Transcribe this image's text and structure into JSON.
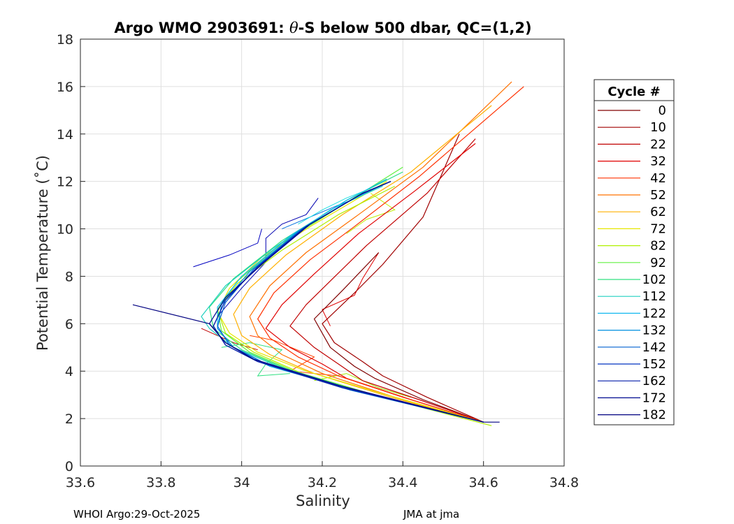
{
  "chart_data": {
    "type": "line",
    "title_prefix": "Argo WMO 2903691: ",
    "title_theta": "θ",
    "title_suffix": "-S below 500 dbar,  QC=(1,2)",
    "xlabel": "Salinity",
    "ylabel": "Potential Temperature (˚C)",
    "xlim": [
      33.6,
      34.8
    ],
    "ylim": [
      0,
      18
    ],
    "xticks": [
      33.6,
      33.8,
      34.0,
      34.2,
      34.4,
      34.6,
      34.8
    ],
    "xtick_labels": [
      "33.6",
      "33.8",
      "34",
      "34.2",
      "34.4",
      "34.6",
      "34.8"
    ],
    "yticks": [
      0,
      2,
      4,
      6,
      8,
      10,
      12,
      14,
      16,
      18
    ],
    "ytick_labels": [
      "0",
      "2",
      "4",
      "6",
      "8",
      "10",
      "12",
      "14",
      "16",
      "18"
    ],
    "grid": true,
    "legend_title": "Cycle #",
    "legend_placement": "outside-right",
    "series": [
      {
        "name": "0",
        "color": "#800000",
        "points": [
          [
            34.6,
            1.85
          ],
          [
            34.45,
            2.8
          ],
          [
            34.33,
            3.7
          ],
          [
            34.28,
            4.2
          ],
          [
            34.22,
            5.0
          ],
          [
            34.18,
            6.2
          ],
          [
            34.25,
            7.4
          ],
          [
            34.34,
            9.0
          ]
        ]
      },
      {
        "name": "10",
        "color": "#a00000",
        "points": [
          [
            34.6,
            1.85
          ],
          [
            34.46,
            2.9
          ],
          [
            34.35,
            3.8
          ],
          [
            34.3,
            4.4
          ],
          [
            34.23,
            5.2
          ],
          [
            34.2,
            6.0
          ],
          [
            34.28,
            7.3
          ],
          [
            34.35,
            8.5
          ],
          [
            34.45,
            10.5
          ],
          [
            34.54,
            14.0
          ]
        ]
      },
      {
        "name": "22",
        "color": "#c00000",
        "points": [
          [
            34.6,
            1.85
          ],
          [
            34.44,
            2.8
          ],
          [
            34.3,
            3.6
          ],
          [
            34.24,
            4.3
          ],
          [
            34.18,
            5.0
          ],
          [
            34.12,
            5.9
          ],
          [
            34.16,
            6.8
          ],
          [
            34.22,
            7.8
          ],
          [
            34.31,
            9.3
          ],
          [
            34.46,
            11.5
          ],
          [
            34.58,
            13.8
          ]
        ]
      },
      {
        "name": "32",
        "color": "#e00000",
        "points": [
          [
            34.6,
            1.85
          ],
          [
            34.42,
            2.8
          ],
          [
            34.26,
            3.7
          ],
          [
            34.2,
            4.3
          ],
          [
            34.12,
            5.0
          ],
          [
            34.06,
            5.8
          ],
          [
            34.1,
            6.8
          ],
          [
            34.18,
            8.1
          ],
          [
            34.29,
            9.8
          ],
          [
            34.43,
            11.6
          ],
          [
            34.58,
            13.6
          ]
        ]
      },
      {
        "name": "42",
        "color": "#ff3000",
        "points": [
          [
            34.6,
            1.85
          ],
          [
            34.4,
            2.9
          ],
          [
            34.24,
            3.8
          ],
          [
            34.14,
            4.6
          ],
          [
            34.07,
            5.4
          ],
          [
            34.04,
            6.2
          ],
          [
            34.08,
            7.3
          ],
          [
            34.17,
            8.7
          ],
          [
            34.28,
            10.1
          ],
          [
            34.44,
            12.2
          ],
          [
            34.7,
            16.0
          ]
        ]
      },
      {
        "name": "52",
        "color": "#ff7000",
        "points": [
          [
            34.6,
            1.85
          ],
          [
            34.38,
            2.9
          ],
          [
            34.2,
            3.9
          ],
          [
            34.1,
            4.7
          ],
          [
            34.04,
            5.5
          ],
          [
            34.02,
            6.3
          ],
          [
            34.07,
            7.6
          ],
          [
            34.16,
            9.0
          ],
          [
            34.29,
            10.6
          ],
          [
            34.45,
            12.6
          ],
          [
            34.67,
            16.2
          ]
        ]
      },
      {
        "name": "62",
        "color": "#ffb000",
        "points": [
          [
            34.6,
            1.85
          ],
          [
            34.37,
            2.9
          ],
          [
            34.18,
            3.9
          ],
          [
            34.07,
            4.7
          ],
          [
            34.0,
            5.5
          ],
          [
            33.98,
            6.4
          ],
          [
            34.02,
            7.5
          ],
          [
            34.11,
            8.9
          ],
          [
            34.25,
            10.6
          ],
          [
            34.42,
            12.4
          ],
          [
            34.62,
            15.2
          ]
        ]
      },
      {
        "name": "72",
        "color": "#e6e600",
        "points": [
          [
            34.6,
            1.85
          ],
          [
            34.36,
            3.0
          ],
          [
            34.16,
            4.0
          ],
          [
            34.04,
            4.8
          ],
          [
            33.97,
            5.6
          ],
          [
            33.94,
            6.5
          ],
          [
            33.97,
            7.5
          ],
          [
            34.05,
            8.8
          ],
          [
            34.18,
            10.2
          ],
          [
            34.36,
            12.0
          ]
        ]
      },
      {
        "name": "82",
        "color": "#b0f000",
        "points": [
          [
            34.62,
            1.7
          ],
          [
            34.35,
            2.9
          ],
          [
            34.15,
            3.9
          ],
          [
            34.03,
            4.8
          ],
          [
            33.96,
            5.6
          ],
          [
            33.94,
            6.6
          ],
          [
            33.99,
            7.7
          ],
          [
            34.1,
            9.1
          ],
          [
            34.24,
            10.6
          ],
          [
            34.38,
            11.8
          ]
        ]
      },
      {
        "name": "92",
        "color": "#60f040",
        "points": [
          [
            34.6,
            1.85
          ],
          [
            34.33,
            3.0
          ],
          [
            34.13,
            4.0
          ],
          [
            34.02,
            4.8
          ],
          [
            33.95,
            5.7
          ],
          [
            33.94,
            6.6
          ],
          [
            33.99,
            7.8
          ],
          [
            34.1,
            9.4
          ],
          [
            34.25,
            11.0
          ],
          [
            34.4,
            12.6
          ]
        ]
      },
      {
        "name": "102",
        "color": "#30e080",
        "points": [
          [
            34.6,
            1.85
          ],
          [
            34.32,
            3.0
          ],
          [
            34.11,
            4.1
          ],
          [
            34.0,
            4.9
          ],
          [
            33.93,
            5.8
          ],
          [
            33.92,
            6.7
          ],
          [
            33.98,
            7.9
          ],
          [
            34.1,
            9.5
          ],
          [
            34.26,
            11.2
          ],
          [
            34.4,
            12.4
          ]
        ]
      },
      {
        "name": "112",
        "color": "#20d0c0",
        "points": [
          [
            34.6,
            1.85
          ],
          [
            34.3,
            3.1
          ],
          [
            34.09,
            4.2
          ],
          [
            33.98,
            5.0
          ],
          [
            33.92,
            5.8
          ],
          [
            33.9,
            6.3
          ],
          [
            33.96,
            7.6
          ],
          [
            34.08,
            9.2
          ],
          [
            34.22,
            10.8
          ],
          [
            34.35,
            11.8
          ]
        ]
      },
      {
        "name": "122",
        "color": "#10b8f0",
        "points": [
          [
            34.6,
            1.85
          ],
          [
            34.28,
            3.2
          ],
          [
            34.07,
            4.2
          ],
          [
            33.98,
            5.0
          ],
          [
            33.94,
            5.8
          ],
          [
            33.94,
            6.7
          ],
          [
            34.0,
            8.0
          ],
          [
            34.12,
            9.7
          ],
          [
            34.26,
            11.2
          ],
          [
            34.36,
            12.1
          ]
        ]
      },
      {
        "name": "132",
        "color": "#0090e0",
        "points": [
          [
            34.6,
            1.85
          ],
          [
            34.27,
            3.2
          ],
          [
            34.06,
            4.3
          ],
          [
            33.98,
            5.0
          ],
          [
            33.94,
            5.8
          ],
          [
            33.95,
            6.8
          ],
          [
            34.02,
            8.2
          ],
          [
            34.14,
            9.9
          ],
          [
            34.28,
            11.3
          ],
          [
            34.37,
            12.0
          ]
        ]
      },
      {
        "name": "142",
        "color": "#0060d0",
        "points": [
          [
            34.6,
            1.85
          ],
          [
            34.26,
            3.3
          ],
          [
            34.05,
            4.4
          ],
          [
            33.97,
            5.1
          ],
          [
            33.94,
            5.9
          ],
          [
            33.96,
            6.9
          ],
          [
            34.03,
            8.3
          ],
          [
            34.15,
            10.0
          ],
          [
            34.29,
            11.4
          ],
          [
            34.37,
            12.0
          ]
        ]
      },
      {
        "name": "152",
        "color": "#0030c0",
        "points": [
          [
            34.6,
            1.85
          ],
          [
            34.25,
            3.3
          ],
          [
            34.04,
            4.4
          ],
          [
            33.96,
            5.1
          ],
          [
            33.93,
            5.9
          ],
          [
            33.96,
            7.0
          ],
          [
            34.04,
            8.4
          ],
          [
            34.16,
            10.1
          ],
          [
            34.3,
            11.5
          ],
          [
            34.37,
            12.0
          ]
        ]
      },
      {
        "name": "162",
        "color": "#001aa8",
        "points": [
          [
            34.6,
            1.85
          ],
          [
            34.25,
            3.3
          ],
          [
            34.04,
            4.4
          ],
          [
            33.96,
            5.1
          ],
          [
            33.93,
            5.9
          ],
          [
            33.96,
            7.0
          ],
          [
            34.04,
            8.4
          ],
          [
            34.16,
            10.1
          ],
          [
            34.3,
            11.5
          ],
          [
            34.37,
            12.0
          ]
        ]
      },
      {
        "name": "172",
        "color": "#000a90",
        "points": [
          [
            34.6,
            1.85
          ],
          [
            34.24,
            3.4
          ],
          [
            34.03,
            4.5
          ],
          [
            33.96,
            5.2
          ],
          [
            33.92,
            6.0
          ],
          [
            33.96,
            7.1
          ],
          [
            34.05,
            8.5
          ],
          [
            34.17,
            10.2
          ],
          [
            34.3,
            11.5
          ],
          [
            34.37,
            12.0
          ]
        ]
      },
      {
        "name": "182",
        "color": "#000080",
        "points": [
          [
            34.64,
            1.85
          ],
          [
            34.6,
            1.85
          ],
          [
            34.24,
            3.4
          ],
          [
            34.03,
            4.5
          ],
          [
            33.96,
            5.2
          ],
          [
            33.92,
            6.0
          ],
          [
            33.73,
            6.8
          ]
        ]
      }
    ],
    "extra_traces": [
      {
        "color": "#0000b0",
        "points": [
          [
            33.94,
            6.3
          ],
          [
            34.0,
            7.5
          ],
          [
            34.06,
            8.6
          ],
          [
            34.06,
            9.6
          ],
          [
            34.1,
            10.2
          ],
          [
            34.16,
            10.6
          ],
          [
            34.19,
            11.3
          ]
        ]
      },
      {
        "color": "#0000c0",
        "points": [
          [
            33.88,
            8.4
          ],
          [
            33.97,
            8.9
          ],
          [
            34.04,
            9.4
          ],
          [
            34.05,
            10.0
          ]
        ]
      },
      {
        "color": "#0070e0",
        "points": [
          [
            34.1,
            10.0
          ],
          [
            34.17,
            10.5
          ],
          [
            34.24,
            11.0
          ],
          [
            34.3,
            11.4
          ]
        ]
      },
      {
        "color": "#20e0e0",
        "points": [
          [
            34.14,
            10.2
          ],
          [
            34.2,
            10.8
          ],
          [
            34.26,
            11.3
          ],
          [
            34.32,
            11.7
          ]
        ]
      },
      {
        "color": "#c0f000",
        "points": [
          [
            34.32,
            11.5
          ],
          [
            34.38,
            10.8
          ],
          [
            34.31,
            10.4
          ],
          [
            34.26,
            9.8
          ]
        ]
      },
      {
        "color": "#e00000",
        "points": [
          [
            34.34,
            9.0
          ],
          [
            34.3,
            7.9
          ],
          [
            34.28,
            7.2
          ],
          [
            34.2,
            6.6
          ],
          [
            34.22,
            5.9
          ]
        ]
      },
      {
        "color": "#ff4000",
        "points": [
          [
            34.02,
            5.5
          ],
          [
            34.08,
            5.3
          ],
          [
            34.18,
            4.6
          ],
          [
            34.12,
            4.0
          ],
          [
            34.24,
            3.8
          ]
        ]
      },
      {
        "color": "#c00000",
        "points": [
          [
            33.9,
            5.8
          ],
          [
            33.94,
            5.5
          ],
          [
            33.98,
            5.2
          ],
          [
            34.04,
            4.9
          ]
        ]
      },
      {
        "color": "#30e080",
        "points": [
          [
            33.95,
            5.0
          ],
          [
            34.02,
            5.2
          ],
          [
            34.1,
            4.9
          ],
          [
            34.06,
            4.3
          ],
          [
            34.04,
            3.8
          ],
          [
            34.12,
            3.9
          ]
        ]
      },
      {
        "color": "#a0f000",
        "points": [
          [
            34.18,
            3.6
          ],
          [
            34.26,
            3.9
          ],
          [
            34.34,
            3.3
          ],
          [
            34.42,
            2.9
          ]
        ]
      }
    ],
    "footer_left": "WHOI Argo:29-Oct-2025",
    "footer_right": "JMA at jma"
  }
}
